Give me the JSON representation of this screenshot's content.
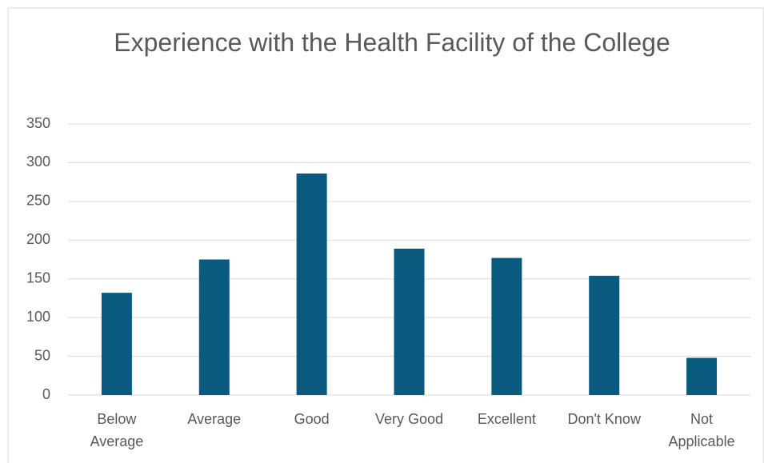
{
  "chart_data": {
    "type": "bar",
    "title": "Experience with the Health Facility of the College",
    "categories": [
      "Below Average",
      "Average",
      "Good",
      "Very Good",
      "Excellent",
      "Don't Know",
      "Not Applicable"
    ],
    "values": [
      132,
      175,
      286,
      189,
      177,
      154,
      48
    ],
    "color": "#0a5a80",
    "ylim": [
      0,
      350
    ],
    "yticks": [
      0,
      50,
      100,
      150,
      200,
      250,
      300,
      350
    ],
    "grid": true
  }
}
